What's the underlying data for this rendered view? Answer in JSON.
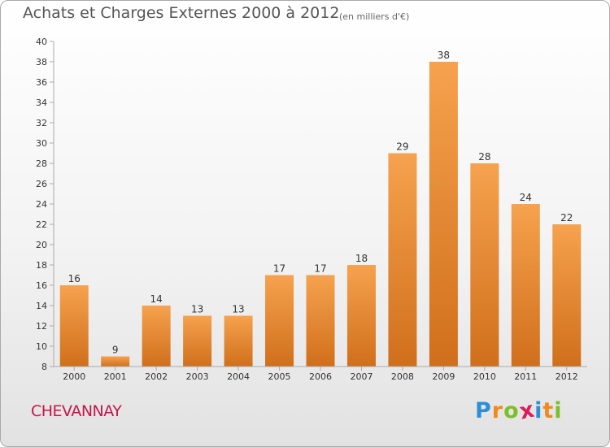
{
  "header": {
    "title": "Achats et Charges Externes 2000 à 2012",
    "subtitle": "(en milliers d'€)"
  },
  "footer": {
    "location": "CHEVANNAY",
    "logo_letters": [
      {
        "char": "P",
        "color": "#2c8fd6"
      },
      {
        "char": "r",
        "color": "#f08a1c"
      },
      {
        "char": "o",
        "color": "#7bbf2a"
      },
      {
        "char": "x",
        "color": "#d81f5c"
      },
      {
        "char": "i",
        "color": "#2c8fd6"
      },
      {
        "char": "t",
        "color": "#f08a1c"
      },
      {
        "char": "i",
        "color": "#7bbf2a"
      }
    ]
  },
  "chart_data": {
    "type": "bar",
    "categories": [
      "2000",
      "2001",
      "2002",
      "2003",
      "2004",
      "2005",
      "2006",
      "2007",
      "2008",
      "2009",
      "2010",
      "2011",
      "2012"
    ],
    "values": [
      16,
      9,
      14,
      13,
      13,
      17,
      17,
      18,
      29,
      38,
      28,
      24,
      22
    ],
    "ylim": [
      8,
      40
    ],
    "yticks": [
      8,
      10,
      12,
      14,
      16,
      18,
      20,
      22,
      24,
      26,
      28,
      30,
      32,
      34,
      36,
      38,
      40
    ],
    "grid": false,
    "colors": {
      "bar_top": "#f6a24e",
      "bar_bottom": "#d06f1b",
      "axis": "#aaaaaa"
    }
  }
}
